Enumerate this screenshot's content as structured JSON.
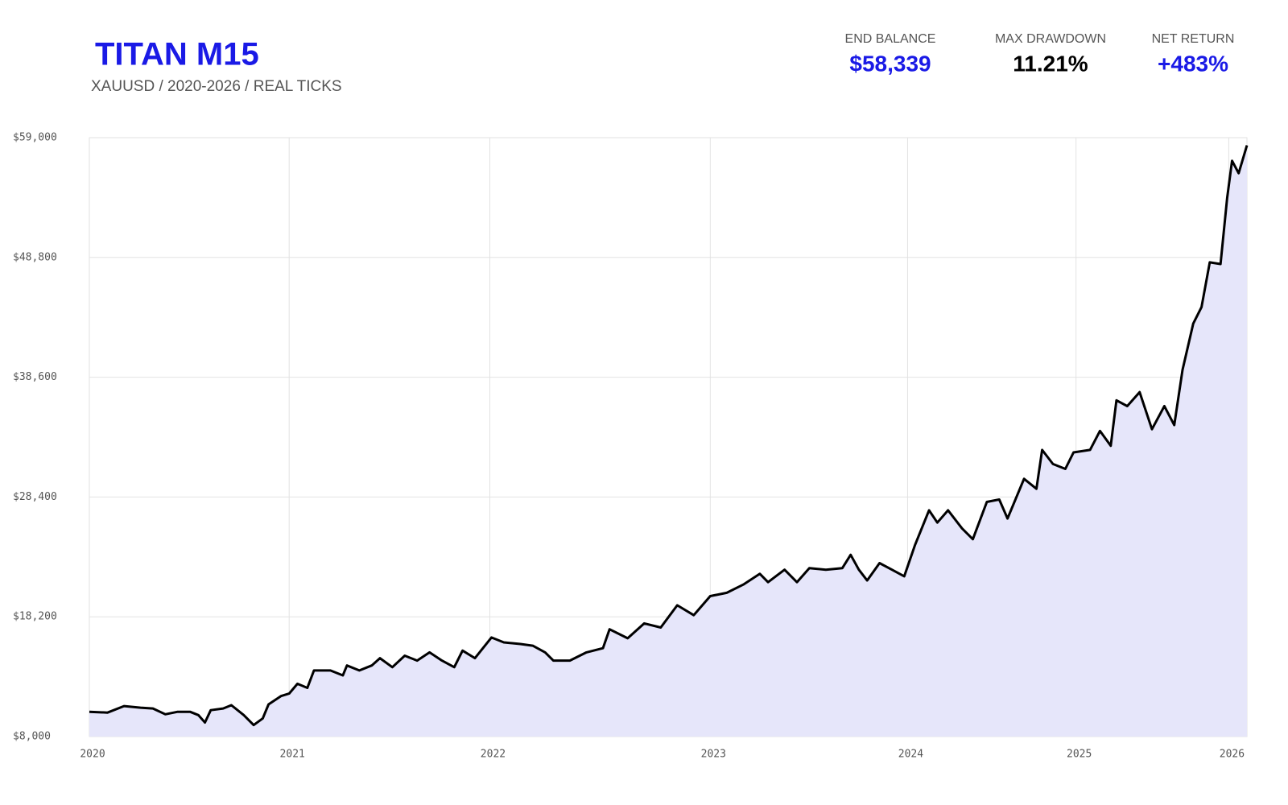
{
  "header": {
    "title": "TITAN M15",
    "subtitle": "XAUUSD / 2020-2026 / REAL TICKS",
    "stats": [
      {
        "label": "END BALANCE",
        "value": "$58,339",
        "color": "#1a1ae6"
      },
      {
        "label": "MAX DRAWDOWN",
        "value": "11.21%",
        "color": "#000000"
      },
      {
        "label": "NET RETURN",
        "value": "+483%",
        "color": "#1a1ae6"
      }
    ]
  },
  "chart_data": {
    "type": "line",
    "color": "#000000",
    "area_color": "#e6e6fa",
    "grid": true,
    "x": [
      0,
      22,
      42,
      62,
      77,
      92,
      107,
      122,
      132,
      140,
      147,
      162,
      172,
      187,
      199,
      210,
      217,
      232,
      242,
      252,
      264,
      272,
      292,
      307,
      312,
      327,
      342,
      352,
      367,
      382,
      397,
      412,
      427,
      442,
      452,
      467,
      487,
      502,
      522,
      537,
      552,
      562,
      582,
      602,
      622,
      630,
      652,
      672,
      692,
      712,
      732,
      752,
      772,
      792,
      812,
      822,
      842,
      857,
      872,
      892,
      912,
      922,
      932,
      942,
      957,
      972,
      987,
      1000,
      1017,
      1027,
      1040,
      1057,
      1070,
      1087,
      1102,
      1112,
      1132,
      1147,
      1154,
      1167,
      1182,
      1192,
      1212,
      1224,
      1237,
      1244,
      1257,
      1272,
      1287,
      1302,
      1314,
      1324,
      1337,
      1347,
      1357,
      1370,
      1378,
      1384,
      1392,
      1402
    ],
    "values": [
      10110,
      10040,
      10600,
      10460,
      10390,
      9900,
      10110,
      10110,
      9830,
      9200,
      10250,
      10390,
      10670,
      9830,
      8980,
      9550,
      10740,
      11450,
      11660,
      12500,
      12150,
      13630,
      13630,
      13210,
      14050,
      13630,
      14050,
      14680,
      13910,
      14890,
      14470,
      15170,
      14470,
      13910,
      15320,
      14680,
      16440,
      16020,
      15880,
      15740,
      15170,
      14470,
      14470,
      15170,
      15530,
      17140,
      16370,
      17640,
      17290,
      19180,
      18340,
      19960,
      20240,
      20940,
      21860,
      21150,
      22210,
      21150,
      22350,
      22210,
      22350,
      23480,
      22210,
      21290,
      22770,
      22210,
      21650,
      24320,
      27270,
      26220,
      27270,
      25730,
      24810,
      27980,
      28190,
      26570,
      29950,
      29100,
      32410,
      31210,
      30790,
      32200,
      32410,
      34030,
      32760,
      36630,
      36140,
      37330,
      34170,
      36140,
      34520,
      39230,
      43170,
      44580,
      48380,
      48240,
      53860,
      57030,
      55970,
      58339
    ],
    "xlim": [
      0,
      1402
    ],
    "xticks": [
      {
        "value": 0,
        "label": "2020"
      },
      {
        "value": 242,
        "label": "2021"
      },
      {
        "value": 485,
        "label": "2022"
      },
      {
        "value": 752,
        "label": "2023"
      },
      {
        "value": 991,
        "label": "2024"
      },
      {
        "value": 1195,
        "label": "2025"
      },
      {
        "value": 1380,
        "label": "2026"
      }
    ],
    "ylim": [
      8000,
      59000
    ],
    "yticks": [
      {
        "value": 8000,
        "label": "$8,000"
      },
      {
        "value": 18200,
        "label": "$18,200"
      },
      {
        "value": 28400,
        "label": "$28,400"
      },
      {
        "value": 38600,
        "label": "$38,600"
      },
      {
        "value": 48800,
        "label": "$48,800"
      },
      {
        "value": 59000,
        "label": "$59,000"
      }
    ]
  }
}
